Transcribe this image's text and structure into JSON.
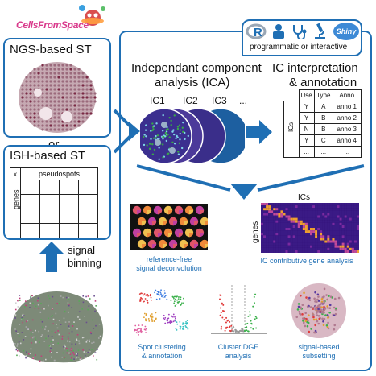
{
  "logo": {
    "text": "CellsFromSpace"
  },
  "left": {
    "ngs_title": "NGS-based ST",
    "or_label": "or",
    "ish_title": "ISH-based ST",
    "ish_table": {
      "corner": "x",
      "col_header": "pseudospots",
      "row_header": "genes"
    },
    "binning_label_1": "signal",
    "binning_label_2": "binning"
  },
  "main": {
    "badge_text": "programmatic or interactive",
    "badge_icons": [
      "r-logo-icon",
      "user-at-laptop-icon",
      "stethoscope-icon",
      "microscope-icon",
      "shiny-logo-icon"
    ],
    "shiny_label": "Shiny",
    "ica_title_1": "Independant component",
    "ica_title_2": "analysis (ICA)",
    "ic_labels": [
      "IC1",
      "IC2",
      "IC3",
      "..."
    ],
    "interp_title_1": "IC interpretation",
    "interp_title_2": "& annotation",
    "anno_table": {
      "row_axis_label": "ICs",
      "headers": [
        "Use",
        "Type",
        "Anno"
      ],
      "rows": [
        [
          "Y",
          "A",
          "anno 1"
        ],
        [
          "Y",
          "B",
          "anno 2"
        ],
        [
          "N",
          "B",
          "anno 3"
        ],
        [
          "Y",
          "C",
          "anno 4"
        ],
        [
          "...",
          "...",
          "..."
        ]
      ]
    },
    "heatmap": {
      "x_label": "ICs",
      "y_label": "genes"
    },
    "captions": {
      "deconv_1": "reference-free",
      "deconv_2": "signal deconvolution",
      "contrib": "IC contributive gene analysis",
      "cluster_1": "Spot clustering",
      "cluster_2": "& annotation",
      "dge_1": "Cluster DGE",
      "dge_2": "analysis",
      "subset_1": "signal-based",
      "subset_2": "subsetting"
    }
  },
  "colors": {
    "accent": "#1f6fb4",
    "arrow": "#1f6fb4",
    "heatmap_bg": "#2a0a6a",
    "heatmap_hot": "#f0a030"
  }
}
